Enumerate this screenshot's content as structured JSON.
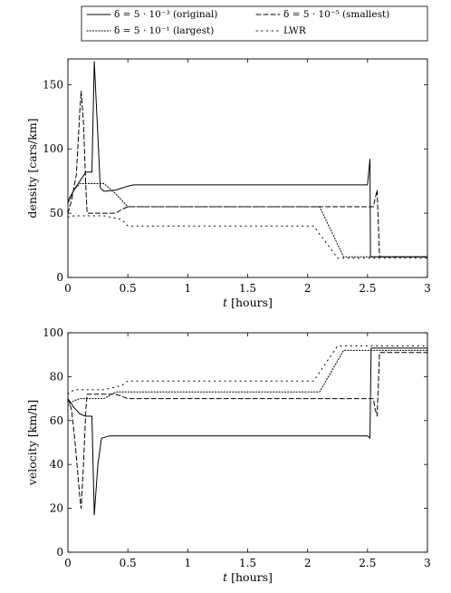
{
  "chart_data": [
    {
      "type": "line",
      "xlabel_var": "t",
      "xlabel_unit": "[hours]",
      "ylabel": "density [cars/km]",
      "xlim": [
        0,
        3
      ],
      "ylim": [
        0,
        170
      ],
      "xticks": [
        0,
        0.5,
        1,
        1.5,
        2,
        2.5,
        3
      ],
      "xtick_labels": [
        "0",
        "0.5",
        "1",
        "1.5",
        "2",
        "2.5",
        "3"
      ],
      "yticks": [
        0,
        50,
        100,
        150
      ],
      "ytick_labels": [
        "0",
        "50",
        "100",
        "150"
      ],
      "legend_position": "top",
      "series": [
        {
          "name": "δ = 5 · 10⁻³ (original)",
          "style": "solid",
          "x": [
            0,
            0.05,
            0.1,
            0.15,
            0.2,
            0.22,
            0.25,
            0.27,
            0.3,
            0.4,
            0.5,
            0.55,
            1.0,
            2.0,
            2.5,
            2.5,
            2.52,
            2.525,
            2.53,
            3.0
          ],
          "y": [
            58,
            68,
            75,
            82,
            82,
            168,
            110,
            70,
            67,
            68,
            71,
            72,
            72,
            72,
            72,
            72,
            92,
            16,
            16,
            16
          ]
        },
        {
          "name": "δ = 5 · 10⁻⁵ (smallest)",
          "style": "dashed",
          "x": [
            0,
            0.03,
            0.07,
            0.1,
            0.11,
            0.13,
            0.15,
            0.16,
            0.2,
            0.3,
            0.4,
            0.45,
            0.5,
            1.0,
            2.0,
            2.5,
            2.55,
            2.56,
            2.58,
            2.6,
            3.0
          ],
          "y": [
            50,
            60,
            80,
            130,
            145,
            120,
            70,
            50,
            50,
            50,
            50,
            53,
            55,
            55,
            55,
            55,
            55,
            60,
            68,
            16,
            16
          ]
        },
        {
          "name": "δ = 5 · 10⁻¹ (largest)",
          "style": "dotted",
          "x": [
            0,
            0.05,
            0.1,
            0.15,
            0.2,
            0.3,
            0.4,
            0.5,
            1.0,
            1.5,
            2.0,
            2.1,
            2.3,
            2.5,
            3.0
          ],
          "y": [
            60,
            68,
            73,
            73,
            73,
            73,
            65,
            55,
            55,
            55,
            55,
            55,
            16,
            16,
            16
          ]
        },
        {
          "name": "LWR",
          "style": "loosely-dotted",
          "x": [
            0,
            0.05,
            0.15,
            0.3,
            0.45,
            0.5,
            1.0,
            1.5,
            2.0,
            2.05,
            2.25,
            2.5,
            3.0
          ],
          "y": [
            47,
            48,
            48,
            48,
            45,
            40,
            40,
            40,
            40,
            40,
            15,
            15,
            15
          ]
        }
      ]
    },
    {
      "type": "line",
      "xlabel_var": "t",
      "xlabel_unit": "[hours]",
      "ylabel": "velocity [km/h]",
      "xlim": [
        0,
        3
      ],
      "ylim": [
        0,
        100
      ],
      "xticks": [
        0,
        0.5,
        1,
        1.5,
        2,
        2.5,
        3
      ],
      "xtick_labels": [
        "0",
        "0.5",
        "1",
        "1.5",
        "2",
        "2.5",
        "3"
      ],
      "yticks": [
        0,
        20,
        40,
        60,
        80,
        100
      ],
      "ytick_labels": [
        "0",
        "20",
        "40",
        "60",
        "80",
        "100"
      ],
      "series": [
        {
          "name": "δ = 5 · 10⁻³ (original)",
          "style": "solid",
          "x": [
            0,
            0.05,
            0.1,
            0.15,
            0.2,
            0.22,
            0.25,
            0.28,
            0.35,
            0.5,
            1.0,
            2.0,
            2.5,
            2.52,
            2.53,
            3.0
          ],
          "y": [
            70,
            66,
            63,
            62,
            62,
            17,
            40,
            52,
            53,
            53,
            53,
            53,
            53,
            52,
            93,
            93
          ]
        },
        {
          "name": "δ = 5 · 10⁻⁵ (smallest)",
          "style": "dashed",
          "x": [
            0,
            0.03,
            0.06,
            0.1,
            0.11,
            0.13,
            0.15,
            0.16,
            0.2,
            0.3,
            0.4,
            0.45,
            0.5,
            1.0,
            2.0,
            2.5,
            2.55,
            2.56,
            2.58,
            2.6,
            3.0
          ],
          "y": [
            70,
            65,
            50,
            25,
            20,
            40,
            65,
            72,
            72,
            72,
            72,
            71,
            70,
            70,
            70,
            70,
            70,
            66,
            62,
            91,
            91
          ]
        },
        {
          "name": "δ = 5 · 10⁻¹ (largest)",
          "style": "dotted",
          "x": [
            0,
            0.05,
            0.1,
            0.15,
            0.2,
            0.3,
            0.4,
            0.5,
            1.0,
            1.5,
            2.0,
            2.1,
            2.3,
            2.5,
            3.0
          ],
          "y": [
            67,
            69,
            70,
            70,
            70,
            70,
            73,
            73,
            73,
            73,
            73,
            73,
            92,
            92,
            92
          ]
        },
        {
          "name": "LWR",
          "style": "loosely-dotted",
          "x": [
            0,
            0.05,
            0.15,
            0.3,
            0.45,
            0.5,
            1.0,
            1.5,
            2.0,
            2.05,
            2.25,
            2.5,
            3.0
          ],
          "y": [
            72,
            74,
            74,
            74,
            76,
            78,
            78,
            78,
            78,
            78,
            94,
            94,
            94
          ]
        }
      ]
    }
  ]
}
